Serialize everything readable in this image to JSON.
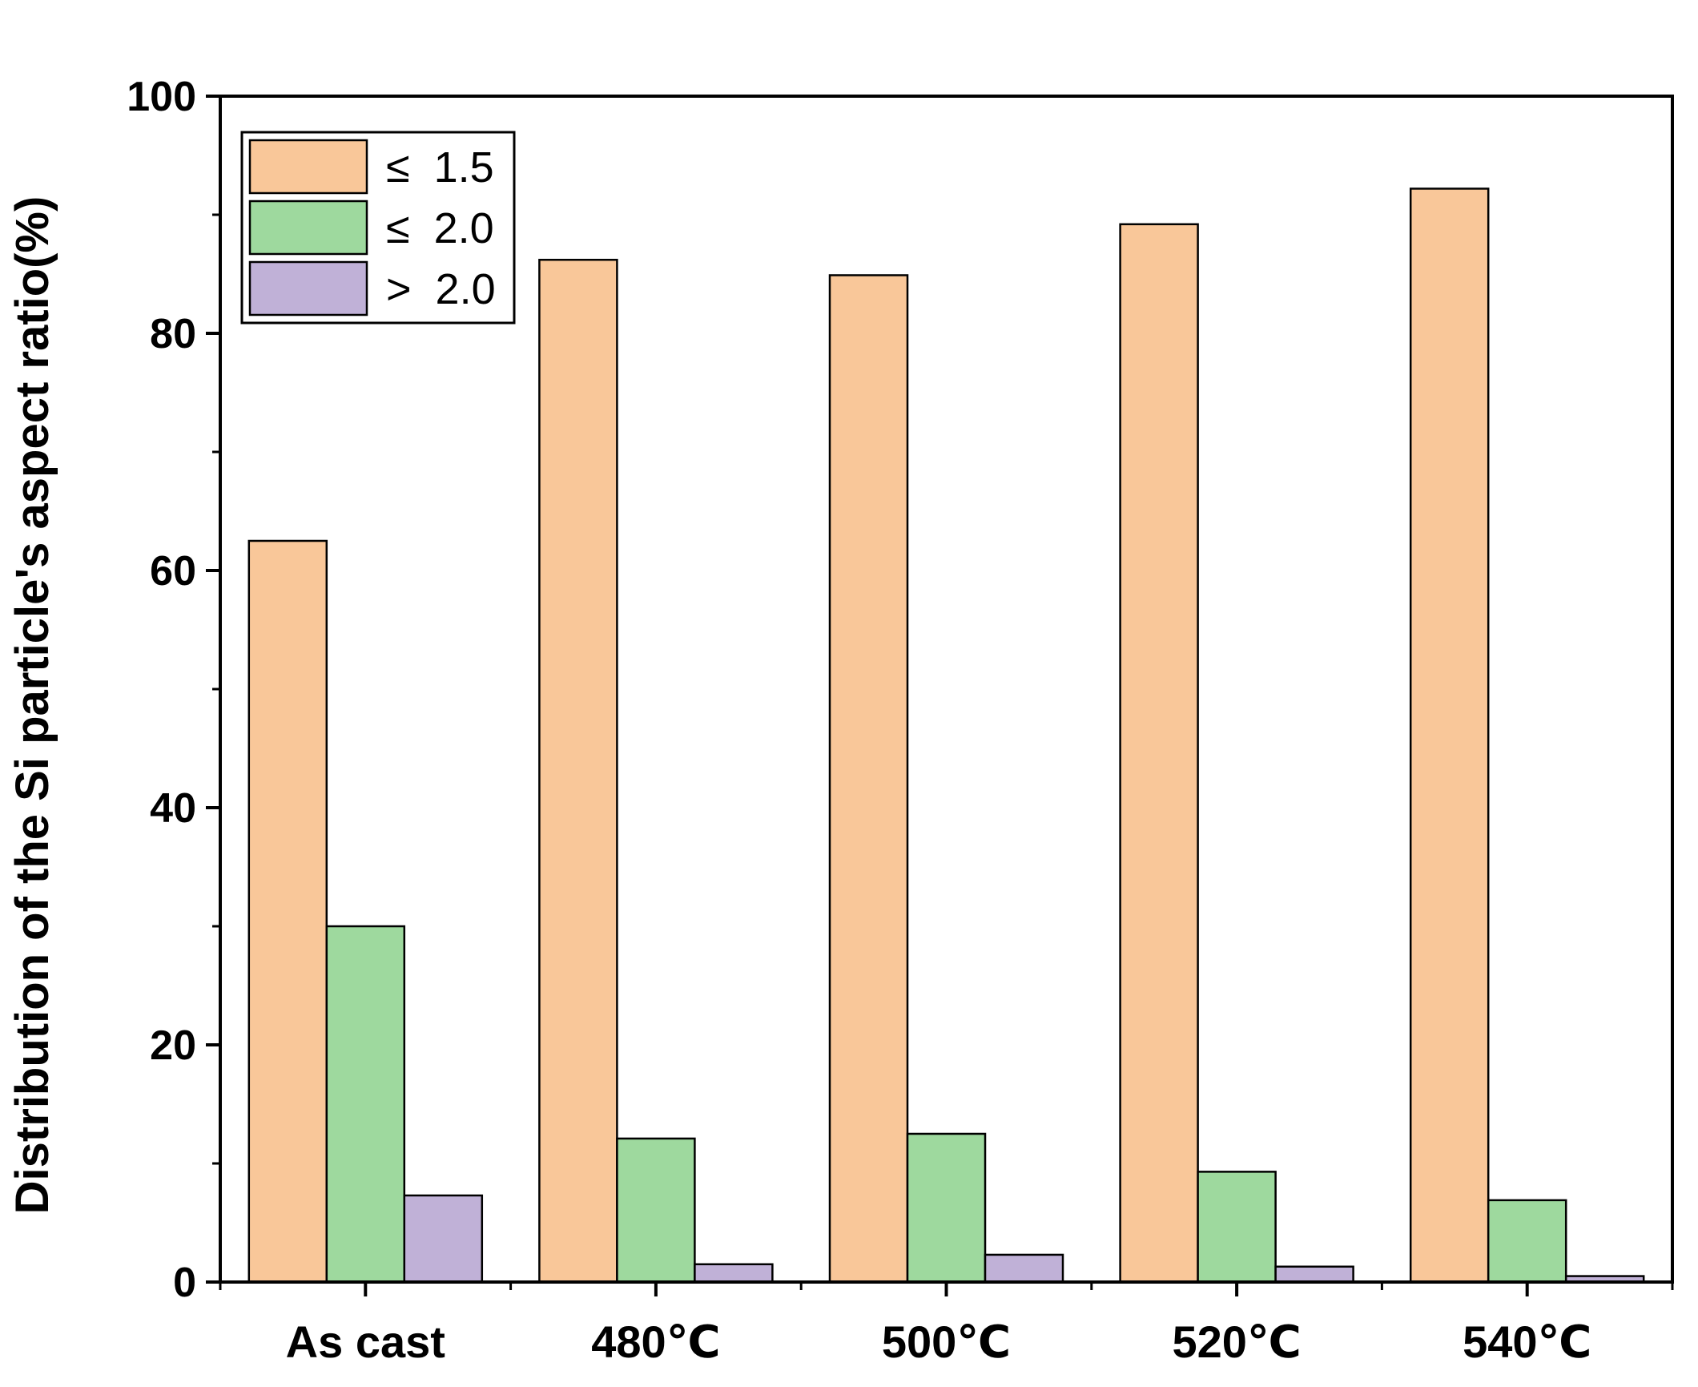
{
  "chart_data": {
    "type": "bar",
    "title": "",
    "xlabel": "",
    "ylabel": "Distribution of the Si particle's aspect ratio(%)",
    "ylim": [
      0,
      100
    ],
    "yticks": [
      0,
      20,
      40,
      60,
      80,
      100
    ],
    "categories": [
      "As cast",
      "480℃",
      "500℃",
      "520℃",
      "540℃"
    ],
    "series": [
      {
        "name": "≤  1.5",
        "color": "#F9C799",
        "values": [
          62.5,
          86.2,
          84.9,
          89.2,
          92.2
        ]
      },
      {
        "name": "≤  2.0",
        "color": "#9ED99E",
        "values": [
          30.0,
          12.1,
          12.5,
          9.3,
          6.9
        ]
      },
      {
        "name": ">  2.0",
        "color": "#C0B1D7",
        "values": [
          7.3,
          1.5,
          2.3,
          1.3,
          0.5
        ]
      }
    ],
    "legend_position": "top-left",
    "grid": false
  }
}
